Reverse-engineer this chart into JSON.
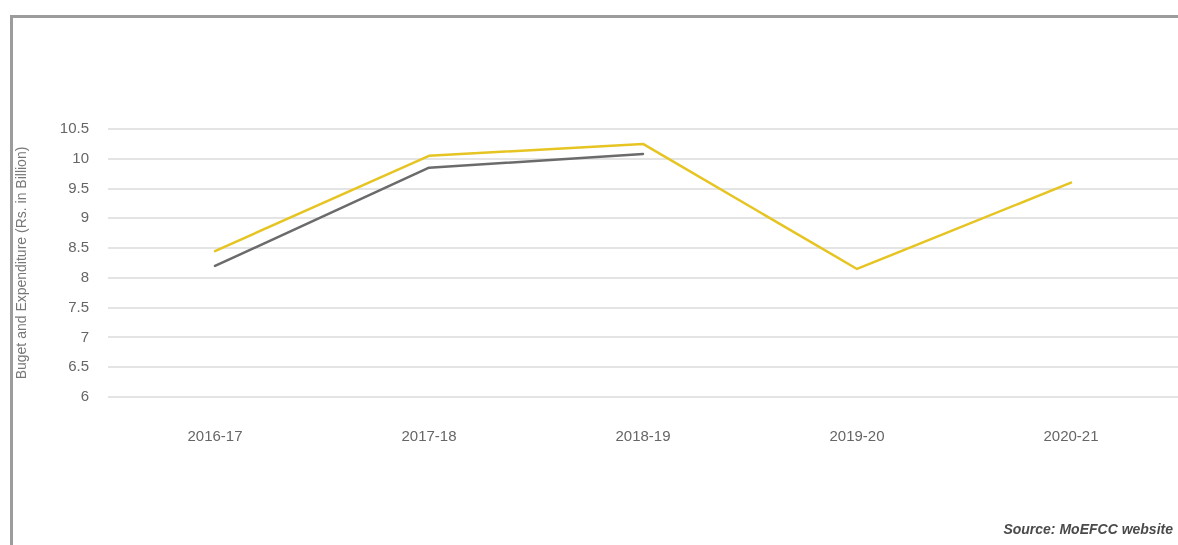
{
  "chart_data": {
    "type": "line",
    "ylabel": "Buget and Expenditure (Rs. in Billion)",
    "categories": [
      "2016-17",
      "2017-18",
      "2018-19",
      "2019-20",
      "2020-21"
    ],
    "series": [
      {
        "color": "#6b6b6b",
        "values": [
          8.2,
          9.85,
          10.08,
          null,
          null
        ]
      },
      {
        "color": "#e6c422",
        "values": [
          8.45,
          10.05,
          10.25,
          8.15,
          9.6
        ]
      }
    ],
    "ylim": [
      6,
      10.5
    ],
    "yticks": [
      6,
      6.5,
      7,
      7.5,
      8,
      8.5,
      9,
      9.5,
      10,
      10.5
    ],
    "grid": "y",
    "legend": false,
    "marker": "none",
    "line_style": "solid",
    "annotations": [
      "Source: MoEFCC website"
    ]
  }
}
